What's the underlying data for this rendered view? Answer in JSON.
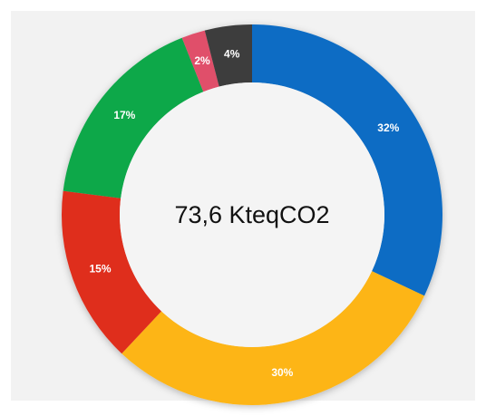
{
  "chart_data": {
    "type": "donut",
    "center_label": "73,6 KteqCO2",
    "categories": [
      null,
      null,
      null,
      null,
      null,
      null
    ],
    "values": [
      32,
      30,
      15,
      17,
      2,
      4
    ],
    "value_labels": [
      "32%",
      "30%",
      "15%",
      "17%",
      "2%",
      "4%"
    ],
    "colors": [
      "#0a6cc4",
      "#fdb515",
      "#df2f1f",
      "#10a84a",
      "#e0506a",
      "#3d3d3d"
    ]
  }
}
